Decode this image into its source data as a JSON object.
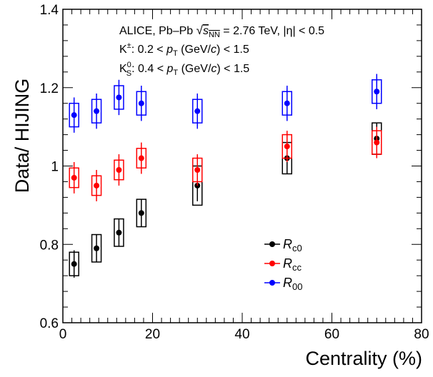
{
  "chart_data": {
    "type": "scatter",
    "title": "",
    "xlabel": "Centrality (%)",
    "ylabel": "Data/ HIJING",
    "xlim": [
      0,
      80
    ],
    "ylim": [
      0.6,
      1.4
    ],
    "x_ticks": [
      "0",
      "20",
      "40",
      "60",
      "80"
    ],
    "y_ticks": [
      "0.6",
      "0.8",
      "1",
      "1.2",
      "1.4"
    ],
    "grid": false,
    "legend_position": "bottom-center",
    "annotations": {
      "line1": "ALICE, Pb–Pb √s_NN = 2.76 TeV, |η| < 0.5",
      "line2": "K±: 0.2 < p_T (GeV/c) < 1.5",
      "line3": "K0_S: 0.4 < p_T (GeV/c) < 1.5"
    },
    "series": [
      {
        "name": "R_c0",
        "color": "#000000",
        "x": [
          2.5,
          7.5,
          12.5,
          17.5,
          30,
          50,
          70
        ],
        "y": [
          0.75,
          0.79,
          0.83,
          0.88,
          0.95,
          1.02,
          1.07
        ],
        "stat_err": [
          0.035,
          0.035,
          0.035,
          0.035,
          0.04,
          0.04,
          0.04
        ],
        "sys_err": [
          0.03,
          0.035,
          0.035,
          0.035,
          0.05,
          0.04,
          0.04
        ]
      },
      {
        "name": "R_cc",
        "color": "#ff0000",
        "x": [
          2.5,
          7.5,
          12.5,
          17.5,
          30,
          50,
          70
        ],
        "y": [
          0.97,
          0.95,
          0.99,
          1.02,
          0.99,
          1.05,
          1.06
        ],
        "stat_err": [
          0.04,
          0.04,
          0.04,
          0.04,
          0.04,
          0.04,
          0.04
        ],
        "sys_err": [
          0.025,
          0.025,
          0.025,
          0.025,
          0.03,
          0.03,
          0.03
        ]
      },
      {
        "name": "R_00",
        "color": "#0000ff",
        "x": [
          2.5,
          7.5,
          12.5,
          17.5,
          30,
          50,
          70
        ],
        "y": [
          1.13,
          1.14,
          1.175,
          1.16,
          1.14,
          1.16,
          1.19
        ],
        "stat_err": [
          0.045,
          0.045,
          0.045,
          0.045,
          0.045,
          0.045,
          0.045
        ],
        "sys_err": [
          0.03,
          0.03,
          0.03,
          0.03,
          0.03,
          0.03,
          0.03
        ]
      }
    ]
  }
}
